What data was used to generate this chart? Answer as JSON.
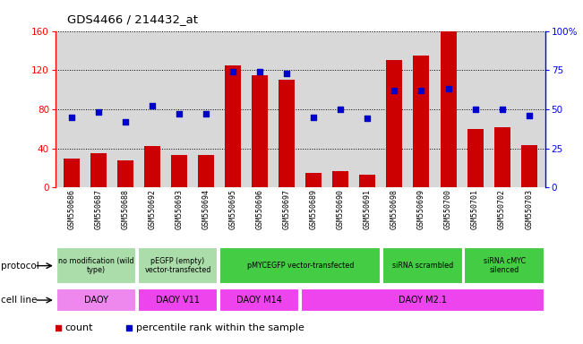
{
  "title": "GDS4466 / 214432_at",
  "samples": [
    "GSM550686",
    "GSM550687",
    "GSM550688",
    "GSM550692",
    "GSM550693",
    "GSM550694",
    "GSM550695",
    "GSM550696",
    "GSM550697",
    "GSM550689",
    "GSM550690",
    "GSM550691",
    "GSM550698",
    "GSM550699",
    "GSM550700",
    "GSM550701",
    "GSM550702",
    "GSM550703"
  ],
  "counts": [
    30,
    35,
    28,
    42,
    33,
    33,
    125,
    115,
    110,
    15,
    17,
    13,
    130,
    135,
    160,
    60,
    62,
    43
  ],
  "percentiles": [
    45,
    48,
    42,
    52,
    47,
    47,
    74,
    74,
    73,
    45,
    50,
    44,
    62,
    62,
    63,
    50,
    50,
    46
  ],
  "ylim_left": [
    0,
    160
  ],
  "ylim_right": [
    0,
    100
  ],
  "yticks_left": [
    0,
    40,
    80,
    120,
    160
  ],
  "yticks_right": [
    0,
    25,
    50,
    75,
    100
  ],
  "bar_color": "#cc0000",
  "dot_color": "#0000cc",
  "bg_color": "#d8d8d8",
  "protocol_groups": [
    {
      "label": "no modification (wild\ntype)",
      "start": 0,
      "end": 3,
      "color": "#aaddaa"
    },
    {
      "label": "pEGFP (empty)\nvector-transfected",
      "start": 3,
      "end": 6,
      "color": "#aaddaa"
    },
    {
      "label": "pMYCEGFP vector-transfected",
      "start": 6,
      "end": 12,
      "color": "#44cc44"
    },
    {
      "label": "siRNA scrambled",
      "start": 12,
      "end": 15,
      "color": "#44cc44"
    },
    {
      "label": "siRNA cMYC\nsilenced",
      "start": 15,
      "end": 18,
      "color": "#44cc44"
    }
  ],
  "cellline_groups": [
    {
      "label": "DAOY",
      "start": 0,
      "end": 3,
      "color": "#ee88ee"
    },
    {
      "label": "DAOY V11",
      "start": 3,
      "end": 6,
      "color": "#ee44ee"
    },
    {
      "label": "DAOY M14",
      "start": 6,
      "end": 9,
      "color": "#ee44ee"
    },
    {
      "label": "DAOY M2.1",
      "start": 9,
      "end": 18,
      "color": "#ee44ee"
    }
  ],
  "group_boundaries": [
    3,
    6,
    9,
    12,
    15
  ],
  "legend_count_label": "count",
  "legend_pct_label": "percentile rank within the sample"
}
